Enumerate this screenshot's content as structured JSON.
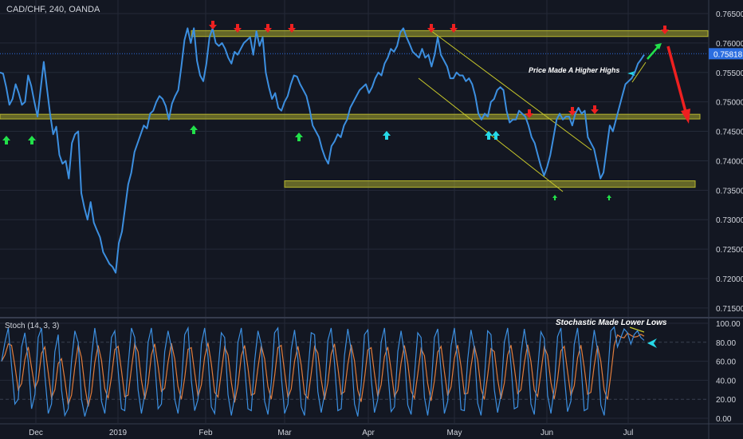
{
  "header": {
    "symbol_line": "CAD/CHF, 240, OANDA",
    "indicator_label": "Stoch (14, 3, 3)"
  },
  "colors": {
    "background": "#131722",
    "grid": "#242a38",
    "price_line": "#3c8fe0",
    "zone_fill": "#b6b62e",
    "channel": "#c8c82a",
    "arrow_up": "#22e04a",
    "arrow_up_cyan": "#26d9e8",
    "arrow_down": "#ee2020",
    "k_line": "#3c8fe0",
    "d_line": "#e07c3c",
    "axis_text": "#d1d4dc",
    "price_badge": "#2c6ee0"
  },
  "chart_data": {
    "type": "line",
    "title": "CAD/CHF, 240, OANDA",
    "x_ticks": [
      "Dec",
      "2019",
      "Feb",
      "Mar",
      "Apr",
      "May",
      "Jun",
      "Jul"
    ],
    "y_ticks": [
      "0.76500",
      "0.76000",
      "0.75500",
      "0.75000",
      "0.74500",
      "0.74000",
      "0.73500",
      "0.73000",
      "0.72500",
      "0.72000",
      "0.71500"
    ],
    "ylim": [
      0.7135,
      0.7673
    ],
    "current_price": "0.75818",
    "series": [
      {
        "values": [
          0.755,
          0.7548,
          0.7525,
          0.7495,
          0.7505,
          0.753,
          0.7515,
          0.7495,
          0.75,
          0.7545,
          0.7527,
          0.75,
          0.7475,
          0.7522,
          0.7568,
          0.7524,
          0.748,
          0.7445,
          0.7458,
          0.741,
          0.7395,
          0.74,
          0.737,
          0.743,
          0.7445,
          0.745,
          0.7345,
          0.732,
          0.73,
          0.733,
          0.7295,
          0.7282,
          0.727,
          0.7245,
          0.7235,
          0.7225,
          0.722,
          0.721,
          0.726,
          0.728,
          0.732,
          0.736,
          0.738,
          0.7415,
          0.743,
          0.7445,
          0.746,
          0.7455,
          0.748,
          0.7485,
          0.75,
          0.751,
          0.7505,
          0.7493,
          0.747,
          0.7497,
          0.751,
          0.752,
          0.756,
          0.7605,
          0.7625,
          0.76,
          0.7625,
          0.757,
          0.7545,
          0.7535,
          0.7565,
          0.761,
          0.7625,
          0.76,
          0.7595,
          0.76,
          0.759,
          0.7575,
          0.7565,
          0.7585,
          0.758,
          0.759,
          0.76,
          0.7605,
          0.761,
          0.758,
          0.762,
          0.7595,
          0.761,
          0.755,
          0.7525,
          0.7505,
          0.7515,
          0.749,
          0.7485,
          0.75,
          0.751,
          0.753,
          0.7545,
          0.7543,
          0.753,
          0.752,
          0.751,
          0.7488,
          0.746,
          0.745,
          0.744,
          0.742,
          0.7405,
          0.7395,
          0.7425,
          0.7433,
          0.7445,
          0.744,
          0.746,
          0.747,
          0.749,
          0.75,
          0.751,
          0.752,
          0.7525,
          0.753,
          0.7515,
          0.7525,
          0.754,
          0.755,
          0.7545,
          0.7565,
          0.7575,
          0.759,
          0.7585,
          0.7595,
          0.7618,
          0.7625,
          0.761,
          0.7598,
          0.7585,
          0.758,
          0.7575,
          0.759,
          0.7575,
          0.758,
          0.756,
          0.758,
          0.761,
          0.758,
          0.757,
          0.756,
          0.754,
          0.754,
          0.755,
          0.7545,
          0.7545,
          0.7535,
          0.754,
          0.753,
          0.751,
          0.748,
          0.747,
          0.748,
          0.7475,
          0.75,
          0.7505,
          0.752,
          0.7525,
          0.752,
          0.7485,
          0.7465,
          0.747,
          0.747,
          0.7485,
          0.748,
          0.7475,
          0.746,
          0.744,
          0.743,
          0.741,
          0.739,
          0.7375,
          0.739,
          0.741,
          0.744,
          0.747,
          0.748,
          0.747,
          0.7475,
          0.7475,
          0.746,
          0.748,
          0.749,
          0.748,
          0.7485,
          0.744,
          0.743,
          0.742,
          0.7395,
          0.737,
          0.738,
          0.742,
          0.746,
          0.745,
          0.747,
          0.749,
          0.751,
          0.753,
          0.7535,
          0.754,
          0.755,
          0.7565,
          0.7572,
          0.758
        ]
      },
      {
        "name": "Stoch (14, 3, 3)",
        "values": [
          60,
          80,
          95,
          55,
          15,
          20,
          75,
          90,
          60,
          10,
          25,
          85,
          95,
          45,
          5,
          15,
          70,
          88,
          30,
          3,
          10,
          60,
          92,
          80,
          20,
          2,
          15,
          65,
          95,
          70,
          18,
          5,
          40,
          85,
          92,
          50,
          10,
          8,
          55,
          95,
          85,
          30,
          5,
          25,
          80,
          95,
          60,
          10,
          15,
          70,
          92,
          75,
          20,
          5,
          35,
          88,
          95,
          40,
          8,
          20,
          78,
          95,
          65,
          12,
          5,
          50,
          90,
          85,
          25,
          3,
          22,
          80,
          95,
          55,
          10,
          8,
          60,
          92,
          78,
          18,
          4,
          38,
          90,
          95,
          45,
          5,
          15,
          72,
          93,
          62,
          12,
          3,
          48,
          90,
          88,
          28,
          6,
          25,
          82,
          95,
          58,
          8,
          10,
          66,
          94,
          72,
          15,
          2,
          35,
          88,
          93,
          42,
          6,
          20,
          80,
          95,
          50,
          7,
          12,
          70,
          92,
          68,
          14,
          4,
          45,
          90,
          85,
          22,
          3,
          30,
          85,
          94,
          48,
          5,
          18,
          76,
          95,
          60,
          9,
          8,
          62,
          93,
          74,
          16,
          3,
          40,
          92,
          88,
          30,
          6,
          25,
          80,
          95,
          56,
          10,
          12,
          68,
          94,
          70,
          15,
          4,
          50,
          91,
          84,
          24,
          5,
          32,
          86,
          95,
          46,
          7,
          18,
          78,
          95,
          58,
          8,
          10,
          64,
          93,
          72,
          14,
          3,
          42,
          92,
          96,
          75,
          85,
          94,
          90,
          78,
          88,
          92,
          85,
          82
        ]
      }
    ]
  },
  "stoch": {
    "y_ticks": [
      "100.00",
      "80.00",
      "60.00",
      "40.00",
      "20.00",
      "0.00"
    ],
    "ylim": [
      -5,
      105
    ]
  },
  "annotations": {
    "price_note": "Price Made A Higher Highs",
    "stoch_note": "Stochastic Made Lower Lows"
  }
}
